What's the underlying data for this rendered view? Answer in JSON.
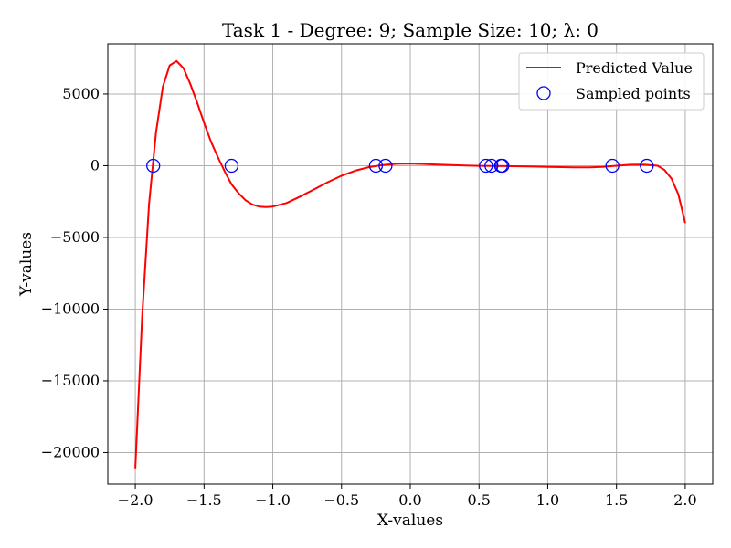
{
  "chart_data": {
    "type": "line",
    "title": "Task 1 - Degree: 9; Sample Size: 10; λ: 0",
    "xlabel": "X-values",
    "ylabel": "Y-values",
    "xlim": [
      -2.2,
      2.2
    ],
    "ylim": [
      -22200,
      8500
    ],
    "xticks": [
      -2.0,
      -1.5,
      -1.0,
      -0.5,
      0.0,
      0.5,
      1.0,
      1.5,
      2.0
    ],
    "xtick_labels": [
      "−2.0",
      "−1.5",
      "−1.0",
      "−0.5",
      "0.0",
      "0.5",
      "1.0",
      "1.5",
      "2.0"
    ],
    "yticks": [
      5000,
      0,
      -5000,
      -10000,
      -15000,
      -20000
    ],
    "ytick_labels": [
      "5000",
      "0",
      "−5000",
      "−10000",
      "−15000",
      "−20000"
    ],
    "grid": true,
    "legend_position": "top-right",
    "series": [
      {
        "name": "Predicted Value",
        "kind": "line",
        "color": "#ff0000",
        "x": [
          -2.0,
          -1.95,
          -1.9,
          -1.85,
          -1.8,
          -1.75,
          -1.7,
          -1.65,
          -1.6,
          -1.55,
          -1.5,
          -1.45,
          -1.4,
          -1.35,
          -1.3,
          -1.25,
          -1.2,
          -1.15,
          -1.1,
          -1.05,
          -1.0,
          -0.9,
          -0.8,
          -0.7,
          -0.6,
          -0.5,
          -0.4,
          -0.3,
          -0.2,
          -0.1,
          0.0,
          0.1,
          0.2,
          0.3,
          0.4,
          0.5,
          0.6,
          0.7,
          0.8,
          0.9,
          1.0,
          1.1,
          1.2,
          1.3,
          1.4,
          1.5,
          1.6,
          1.7,
          1.8,
          1.85,
          1.9,
          1.95,
          2.0
        ],
        "y": [
          -21100,
          -10500,
          -2700,
          2300,
          5500,
          7000,
          7300,
          6800,
          5700,
          4400,
          3000,
          1700,
          600,
          -400,
          -1300,
          -1900,
          -2400,
          -2700,
          -2850,
          -2880,
          -2850,
          -2600,
          -2150,
          -1650,
          -1150,
          -700,
          -350,
          -100,
          50,
          130,
          150,
          120,
          80,
          40,
          10,
          -10,
          -20,
          -30,
          -40,
          -60,
          -80,
          -100,
          -120,
          -120,
          -80,
          0,
          70,
          80,
          0,
          -300,
          -900,
          -2000,
          -4000
        ]
      },
      {
        "name": "Sampled points",
        "kind": "scatter",
        "color": "#0000ff",
        "x": [
          -1.87,
          -1.3,
          -0.25,
          -0.18,
          0.55,
          0.59,
          0.66,
          0.67,
          1.47,
          1.72
        ],
        "y": [
          0,
          0,
          0,
          0,
          0,
          0,
          0,
          0,
          0,
          0
        ]
      }
    ]
  }
}
